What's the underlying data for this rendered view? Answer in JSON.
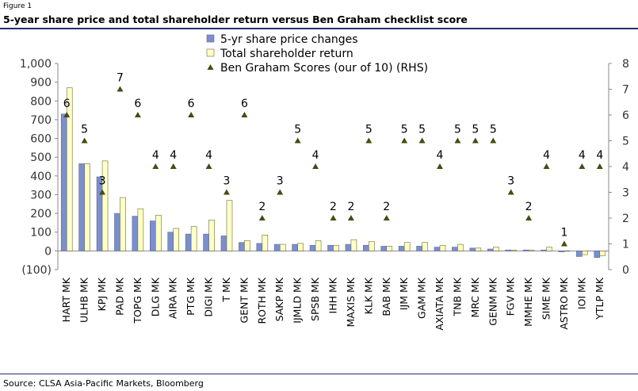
{
  "figure_label": "Figure 1",
  "title": "5-year share price and total shareholder return versus Ben Graham checklist score",
  "source": "Source: CLSA Asia-Pacific Markets, Bloomberg",
  "colors": {
    "price_bar": "#7b8fce",
    "tsr_bar": "#ffffc8",
    "score_marker": "#4a4a14",
    "rule": "#1f2f6e"
  },
  "chart_data": {
    "type": "bar",
    "categories": [
      "HART MK",
      "ULHB MK",
      "KPJ MK",
      "PAD MK",
      "TOPG MK",
      "DLG MK",
      "AIRA MK",
      "PTG MK",
      "DIGI MK",
      "T MK",
      "GENT MK",
      "ROTH MK",
      "SAKP MK",
      "IJMLD MK",
      "SPSB MK",
      "IHH MK",
      "MAXIS MK",
      "KLK MK",
      "BAB MK",
      "IJM MK",
      "GAM MK",
      "AXIATA MK",
      "TNB MK",
      "MRC MK",
      "GENM MK",
      "FGV MK",
      "MMHE MK",
      "SIME MK",
      "ASTRO MK",
      "IOI MK",
      "YTLP MK"
    ],
    "series": [
      {
        "name": "5-yr share price changes",
        "axis": "left",
        "values": [
          730,
          465,
          395,
          200,
          185,
          160,
          100,
          90,
          90,
          80,
          45,
          40,
          35,
          35,
          30,
          30,
          35,
          30,
          25,
          25,
          25,
          20,
          20,
          15,
          10,
          5,
          5,
          5,
          -5,
          -30,
          -35
        ]
      },
      {
        "name": "Total shareholder return",
        "axis": "left",
        "values": [
          870,
          465,
          480,
          285,
          225,
          190,
          120,
          130,
          165,
          270,
          55,
          85,
          35,
          40,
          55,
          30,
          60,
          50,
          25,
          45,
          45,
          30,
          35,
          15,
          20,
          5,
          5,
          20,
          0,
          -20,
          -25
        ]
      },
      {
        "name": "Ben Graham Scores (our of 10) (RHS)",
        "axis": "right",
        "type": "scatter",
        "values": [
          6,
          5,
          3,
          7,
          6,
          4,
          4,
          6,
          4,
          3,
          6,
          2,
          3,
          5,
          4,
          2,
          2,
          5,
          2,
          5,
          5,
          4,
          5,
          5,
          5,
          3,
          2,
          4,
          1,
          4,
          4
        ]
      }
    ],
    "left_axis": {
      "min": -100,
      "max": 1000,
      "ticks": [
        "(100)",
        "0",
        "100",
        "200",
        "300",
        "400",
        "500",
        "600",
        "700",
        "800",
        "900",
        "1,000"
      ]
    },
    "right_axis": {
      "min": 0,
      "max": 8,
      "ticks": [
        "0",
        "1",
        "2",
        "3",
        "4",
        "5",
        "6",
        "7",
        "8"
      ]
    },
    "grid": false,
    "legend_position": "top-center"
  }
}
